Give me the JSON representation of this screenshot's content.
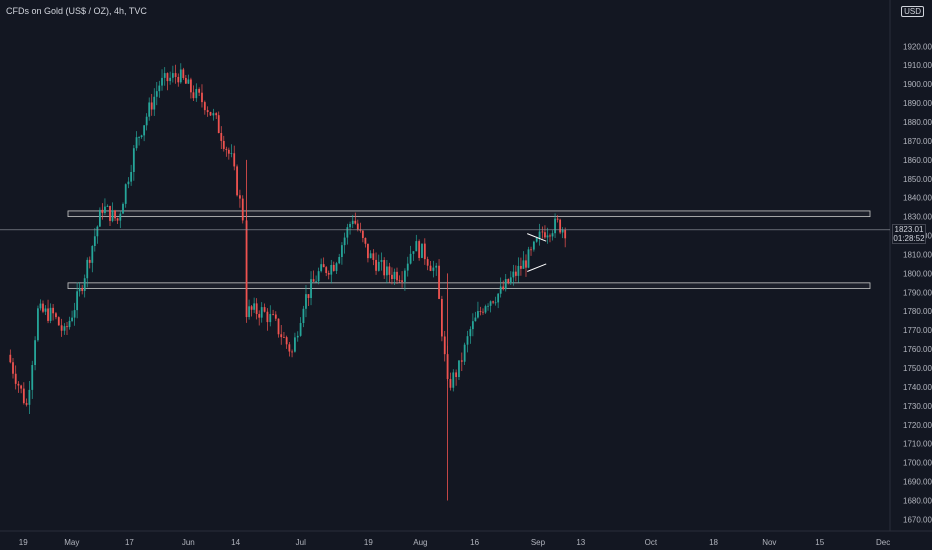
{
  "header": {
    "title": "CFDs on Gold (US$ / OZ), 4h, TVC",
    "currency": "USD"
  },
  "colors": {
    "background": "#131722",
    "up": "#26a69a",
    "down": "#ef5350",
    "zone_border": "#c8c8c8",
    "line": "#ffffff"
  },
  "chart_data": {
    "type": "candlestick",
    "title": "CFDs on Gold (US$ / OZ), 4h, TVC",
    "ylabel": "USD",
    "ylim": [
      1666,
      1936
    ],
    "grid": false,
    "y_ticks": [
      1670,
      1680,
      1690,
      1700,
      1710,
      1720,
      1730,
      1740,
      1750,
      1760,
      1770,
      1780,
      1790,
      1800,
      1810,
      1820,
      1830,
      1840,
      1850,
      1860,
      1870,
      1880,
      1890,
      1900,
      1910,
      1920
    ],
    "x_ticks": [
      "19",
      "May",
      "17",
      "Jun",
      "14",
      "Jul",
      "19",
      "Aug",
      "16",
      "Sep",
      "13",
      "Oct",
      "18",
      "Nov",
      "15",
      "Dec"
    ],
    "last_price": "1823.01",
    "countdown": "01:28:52",
    "price_path": [
      {
        "x": "Apr 15",
        "y": 1757
      },
      {
        "x": "Apr 20",
        "y": 1730
      },
      {
        "x": "Apr 23",
        "y": 1780
      },
      {
        "x": "Apr 27",
        "y": 1778
      },
      {
        "x": "Apr 30",
        "y": 1768
      },
      {
        "x": "May 4",
        "y": 1790
      },
      {
        "x": "May 10",
        "y": 1835
      },
      {
        "x": "May 14",
        "y": 1828
      },
      {
        "x": "May 19",
        "y": 1870
      },
      {
        "x": "May 25",
        "y": 1900
      },
      {
        "x": "May 30",
        "y": 1905
      },
      {
        "x": "Jun 3",
        "y": 1895
      },
      {
        "x": "Jun 6",
        "y": 1890
      },
      {
        "x": "Jun 9",
        "y": 1880
      },
      {
        "x": "Jun 13",
        "y": 1860
      },
      {
        "x": "Jun 16",
        "y": 1830
      },
      {
        "x": "Jun 17",
        "y": 1780
      },
      {
        "x": "Jun 21",
        "y": 1780
      },
      {
        "x": "Jun 24",
        "y": 1775
      },
      {
        "x": "Jun 29",
        "y": 1758
      },
      {
        "x": "Jul 2",
        "y": 1785
      },
      {
        "x": "Jul 6",
        "y": 1800
      },
      {
        "x": "Jul 10",
        "y": 1805
      },
      {
        "x": "Jul 15",
        "y": 1830
      },
      {
        "x": "Jul 19",
        "y": 1810
      },
      {
        "x": "Jul 24",
        "y": 1800
      },
      {
        "x": "Jul 28",
        "y": 1800
      },
      {
        "x": "Jul 31",
        "y": 1815
      },
      {
        "x": "Aug 3",
        "y": 1810
      },
      {
        "x": "Aug 6",
        "y": 1800
      },
      {
        "x": "Aug 9",
        "y": 1740
      },
      {
        "x": "Aug 12",
        "y": 1750
      },
      {
        "x": "Aug 15",
        "y": 1770
      },
      {
        "x": "Aug 19",
        "y": 1785
      },
      {
        "x": "Aug 23",
        "y": 1790
      },
      {
        "x": "Aug 27",
        "y": 1800
      },
      {
        "x": "Aug 31",
        "y": 1810
      },
      {
        "x": "Sep 3",
        "y": 1822
      },
      {
        "x": "Sep 7",
        "y": 1826
      },
      {
        "x": "Sep 9",
        "y": 1823
      }
    ],
    "zones": [
      {
        "from": 1830,
        "to": 1833
      },
      {
        "from": 1792,
        "to": 1795
      }
    ],
    "pennant": {
      "upper": [
        {
          "x": "Aug 30",
          "y": 1821
        },
        {
          "x": "Sep 4",
          "y": 1817
        }
      ],
      "lower": [
        {
          "x": "Aug 30",
          "y": 1801
        },
        {
          "x": "Sep 4",
          "y": 1805
        }
      ]
    }
  }
}
